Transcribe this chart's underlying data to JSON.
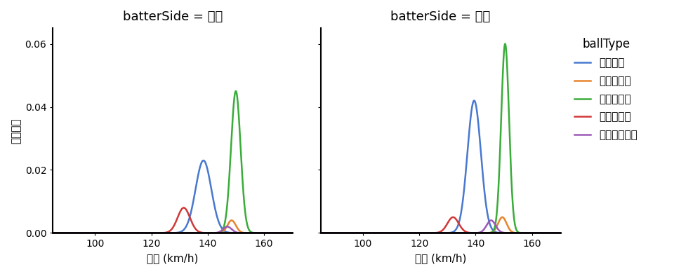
{
  "title_right": "batterSide = 右打",
  "title_left": "batterSide = 左打",
  "ylabel": "確率密度",
  "xlabel": "球速 (km/h)",
  "legend_title": "ballType",
  "ball_types": [
    "フォーク",
    "ツーシーム",
    "ストレート",
    "スライダー",
    "カットボール"
  ],
  "colors": [
    "#4878cf",
    "#e8842c",
    "#3aac3a",
    "#d13838",
    "#9b59b6"
  ],
  "xlim": [
    85,
    170
  ],
  "ylim": [
    0,
    0.065
  ],
  "yticks": [
    0.0,
    0.02,
    0.04,
    0.06
  ],
  "xticks": [
    100,
    120,
    140,
    160
  ],
  "right_data": {
    "フォーク": {
      "mean": 138.5,
      "std": 2.8,
      "scale": 0.023
    },
    "ツーシーム": {
      "mean": 148.5,
      "std": 1.5,
      "scale": 0.004
    },
    "ストレート": {
      "mean": 150.0,
      "std": 1.7,
      "scale": 0.045
    },
    "スライダー": {
      "mean": 131.5,
      "std": 2.2,
      "scale": 0.008
    },
    "カットボール": {
      "mean": 147.0,
      "std": 1.5,
      "scale": 0.002
    }
  },
  "left_data": {
    "フォーク": {
      "mean": 139.5,
      "std": 2.4,
      "scale": 0.042
    },
    "ツーシーム": {
      "mean": 149.5,
      "std": 1.5,
      "scale": 0.005
    },
    "ストレート": {
      "mean": 150.5,
      "std": 1.4,
      "scale": 0.06
    },
    "スライダー": {
      "mean": 132.0,
      "std": 2.0,
      "scale": 0.005
    },
    "カットボール": {
      "mean": 145.5,
      "std": 1.6,
      "scale": 0.004
    }
  },
  "background_color": "#ffffff",
  "linewidth": 1.8,
  "title_fontsize": 13,
  "label_fontsize": 11,
  "tick_fontsize": 10,
  "legend_fontsize": 11,
  "legend_title_fontsize": 12
}
